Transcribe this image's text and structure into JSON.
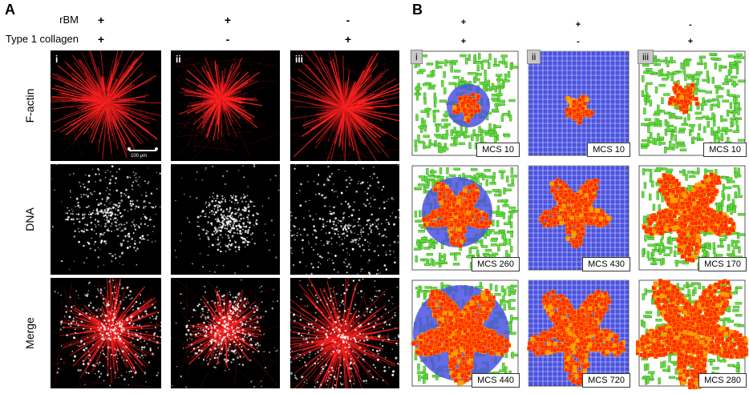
{
  "panel_a": {
    "letter": "A",
    "conditions": [
      {
        "name": "rBM",
        "values": [
          "+",
          "+",
          "-"
        ]
      },
      {
        "name": "Type 1 collagen",
        "values": [
          "+",
          "-",
          "+"
        ]
      }
    ],
    "row_labels": [
      "F-actin",
      "DNA",
      "Merge"
    ],
    "column_labels": [
      "i",
      "ii",
      "iii"
    ],
    "scale_bar": "100 μm"
  },
  "panel_b": {
    "letter": "B",
    "conditions": [
      {
        "values": [
          "+",
          "+",
          "-"
        ]
      },
      {
        "values": [
          "+",
          "-",
          "+"
        ]
      }
    ],
    "column_labels": [
      "i",
      "ii",
      "iii"
    ],
    "mcs_labels": [
      [
        "MCS 10",
        "MCS 10",
        "MCS 10"
      ],
      [
        "MCS 260",
        "MCS 430",
        "MCS 170"
      ],
      [
        "MCS 440",
        "MCS 720",
        "MCS 280"
      ]
    ]
  },
  "colors": {
    "fluorescence_red": "#ff2020",
    "sim_green": "#5ee03a",
    "sim_red": "#ff2a00",
    "sim_orange": "#ffa000",
    "sim_blue": "#4a52e0"
  }
}
